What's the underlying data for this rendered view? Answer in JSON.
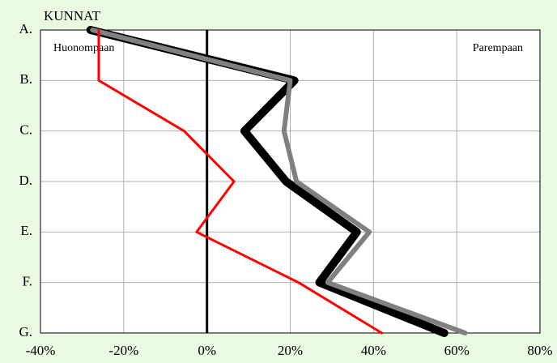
{
  "chart_data": {
    "type": "line",
    "title": "KUNNAT",
    "annotations": [
      "Huonompaan",
      "Parempaan"
    ],
    "categories": [
      "A.",
      "B.",
      "C.",
      "D.",
      "E.",
      "F.",
      "G."
    ],
    "series": [
      {
        "color": "#000000",
        "width": 10,
        "values": [
          -28,
          21,
          9,
          19,
          36,
          27,
          57
        ]
      },
      {
        "color": "#808080",
        "width": 6,
        "values": [
          -27.5,
          20,
          18.5,
          21.5,
          39,
          29,
          62
        ]
      },
      {
        "color": "#ff0000",
        "width": 3,
        "values": [
          -26,
          -26,
          -5.5,
          6.5,
          -2.5,
          22,
          42
        ]
      }
    ],
    "xlim": [
      -40,
      80
    ],
    "xticks": [
      {
        "value": -40,
        "label": "-40%"
      },
      {
        "value": -20,
        "label": "-20%"
      },
      {
        "value": 0,
        "label": "0%"
      },
      {
        "value": 20,
        "label": "20%"
      },
      {
        "value": 40,
        "label": "40%"
      },
      {
        "value": 60,
        "label": "60%"
      },
      {
        "value": 80,
        "label": "80%"
      }
    ],
    "grid": true
  }
}
